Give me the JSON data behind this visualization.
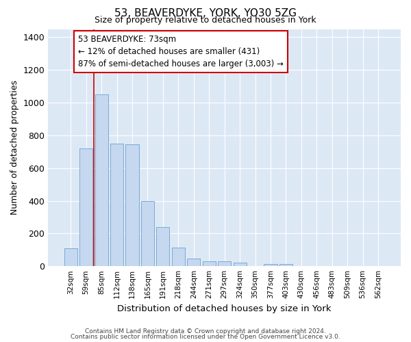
{
  "title1": "53, BEAVERDYKE, YORK, YO30 5ZG",
  "title2": "Size of property relative to detached houses in York",
  "xlabel": "Distribution of detached houses by size in York",
  "ylabel": "Number of detached properties",
  "footer1": "Contains HM Land Registry data © Crown copyright and database right 2024.",
  "footer2": "Contains public sector information licensed under the Open Government Licence v3.0.",
  "annotation_title": "53 BEAVERDYKE: 73sqm",
  "annotation_line1": "← 12% of detached houses are smaller (431)",
  "annotation_line2": "87% of semi-detached houses are larger (3,003) →",
  "bar_color": "#c5d8f0",
  "bar_edge_color": "#7aaad4",
  "vline_color": "#cc0000",
  "annotation_box_edgecolor": "#cc0000",
  "background_color": "#dde8f5",
  "grid_color": "#ffffff",
  "categories": [
    "32sqm",
    "59sqm",
    "85sqm",
    "112sqm",
    "138sqm",
    "165sqm",
    "191sqm",
    "218sqm",
    "244sqm",
    "271sqm",
    "297sqm",
    "324sqm",
    "350sqm",
    "377sqm",
    "403sqm",
    "430sqm",
    "456sqm",
    "483sqm",
    "509sqm",
    "536sqm",
    "562sqm"
  ],
  "values": [
    110,
    720,
    1050,
    750,
    745,
    400,
    240,
    113,
    47,
    28,
    28,
    20,
    0,
    15,
    15,
    0,
    0,
    0,
    0,
    0,
    0
  ],
  "vline_x": 1.52,
  "ylim": [
    0,
    1450
  ],
  "yticks": [
    0,
    200,
    400,
    600,
    800,
    1000,
    1200,
    1400
  ]
}
